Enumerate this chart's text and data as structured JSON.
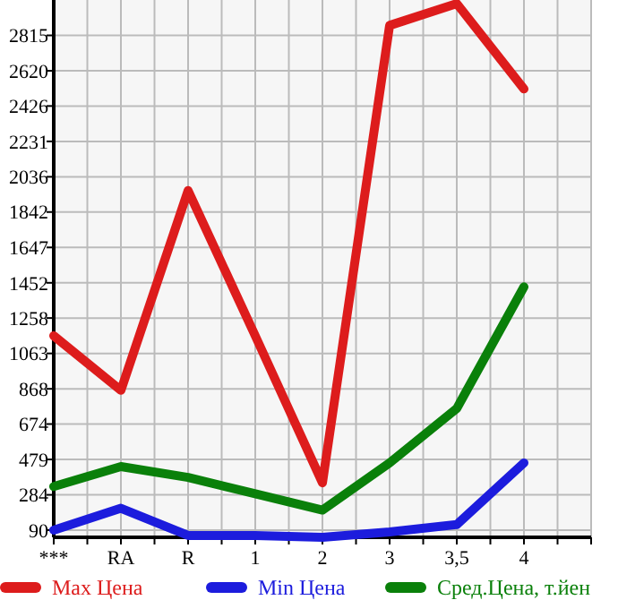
{
  "chart_data": {
    "type": "line",
    "categories": [
      "***",
      "RA",
      "R",
      "1",
      "2",
      "3",
      "3,5",
      "4"
    ],
    "series": [
      {
        "name": "Max Цена",
        "color": "#dd1c1c",
        "values": [
          1160,
          860,
          1960,
          1160,
          350,
          2870,
          2990,
          2520
        ]
      },
      {
        "name": "Min Цена",
        "color": "#1c1cdd",
        "values": [
          90,
          210,
          60,
          60,
          50,
          80,
          120,
          460
        ]
      },
      {
        "name": "Сред.Цена, т.йен",
        "color": "#0a800a",
        "values": [
          330,
          440,
          380,
          290,
          200,
          460,
          760,
          1430
        ]
      }
    ],
    "ylim": [
      50,
      3010
    ],
    "yticks": [
      90,
      284,
      479,
      674,
      868,
      1063,
      1258,
      1452,
      1647,
      1842,
      2036,
      2231,
      2426,
      2620,
      2815
    ],
    "grid": true,
    "legend": "bottom",
    "marker": "none",
    "line_style": "solid"
  }
}
